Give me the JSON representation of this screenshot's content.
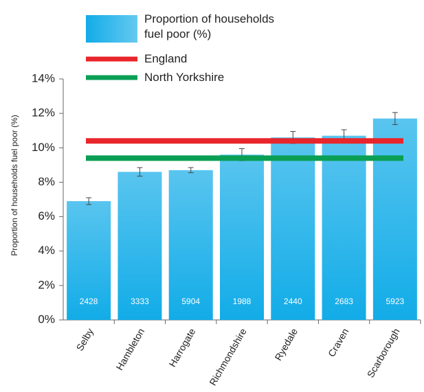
{
  "chart_data": {
    "type": "bar",
    "ylabel": "Proportion of households fuel poor (%)",
    "categories": [
      "Selby",
      "Hambleton",
      "Harrogate",
      "Richmondshire",
      "Ryedale",
      "Craven",
      "Scarborough"
    ],
    "series": [
      {
        "name": "Proportion of households fuel poor (%)",
        "color": "#12ace8",
        "values": [
          6.9,
          8.6,
          8.7,
          9.6,
          10.6,
          10.7,
          11.7
        ],
        "errors": [
          0.2,
          0.25,
          0.15,
          0.35,
          0.35,
          0.35,
          0.35
        ]
      }
    ],
    "bar_labels": [
      "2428",
      "3333",
      "5904",
      "1988",
      "2440",
      "2683",
      "5923"
    ],
    "reference_lines": [
      {
        "name": "England",
        "color": "#e8262b",
        "value": 10.4
      },
      {
        "name": "North Yorkshire",
        "color": "#0a9f55",
        "value": 9.4
      }
    ],
    "ylim": [
      0,
      14
    ],
    "yticks": [
      {
        "value": 0,
        "label": "0%"
      },
      {
        "value": 2,
        "label": "2%"
      },
      {
        "value": 4,
        "label": "4%"
      },
      {
        "value": 6,
        "label": "6%"
      },
      {
        "value": 8,
        "label": "8%"
      },
      {
        "value": 10,
        "label": "10%"
      },
      {
        "value": 12,
        "label": "12%"
      },
      {
        "value": 14,
        "label": "14%"
      }
    ]
  }
}
